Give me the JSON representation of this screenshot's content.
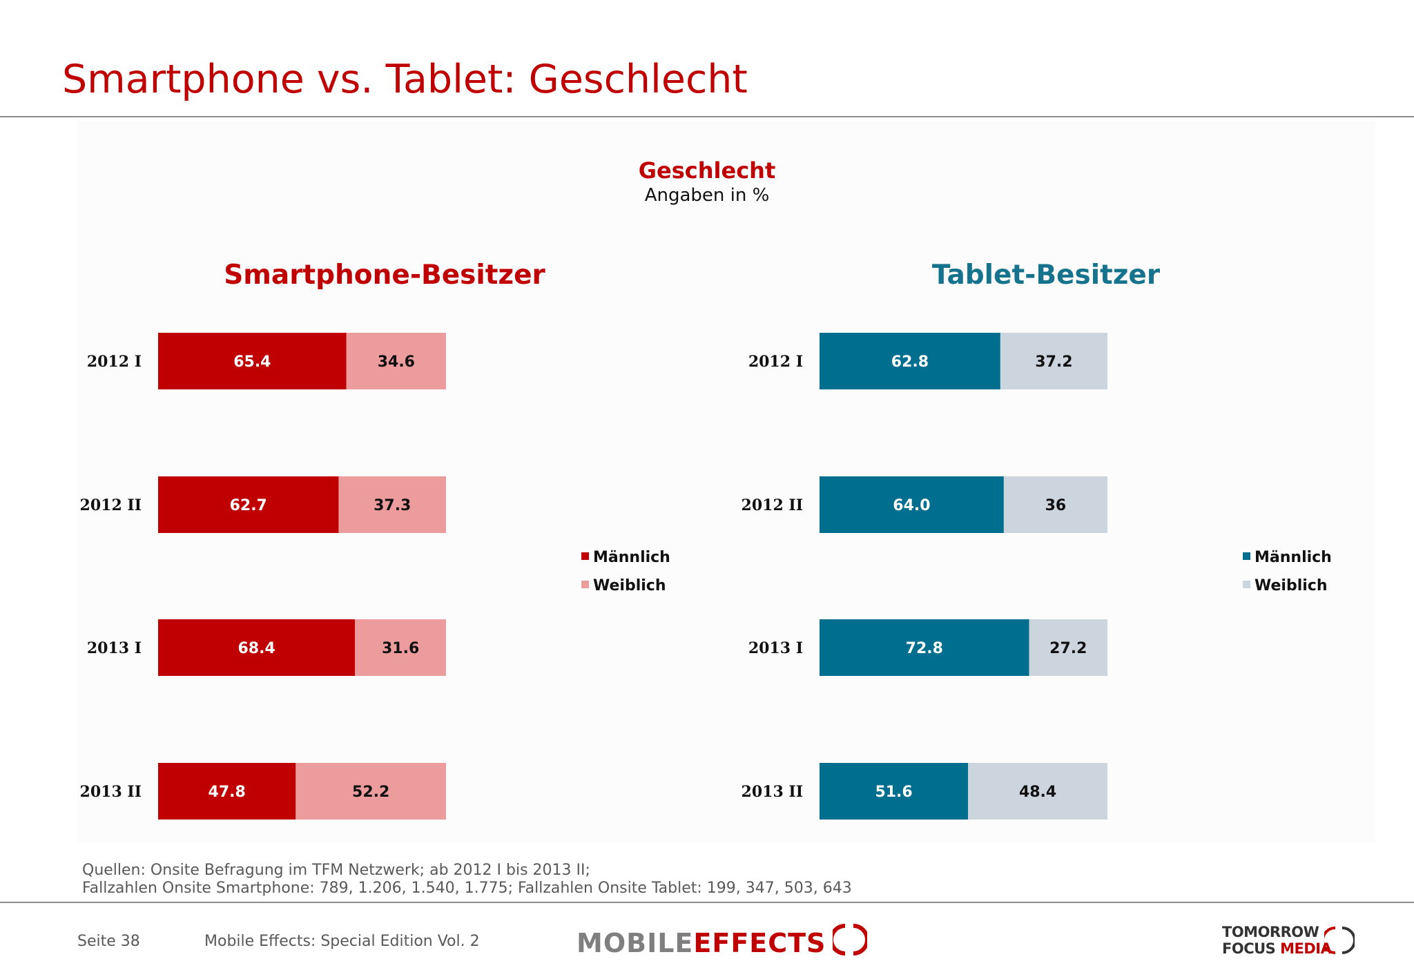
{
  "page": {
    "title": "Smartphone vs. Tablet: Geschlecht"
  },
  "chart_data": [
    {
      "type": "bar",
      "orientation": "horizontal",
      "stacked": true,
      "title": "Smartphone-Besitzer",
      "categories": [
        "2012 I",
        "2012 II",
        "2013 I",
        "2013 II"
      ],
      "series": [
        {
          "name": "Männlich",
          "values": [
            65.4,
            62.7,
            68.4,
            47.8
          ],
          "labels": [
            "65.4",
            "62.7",
            "68.4",
            "47.8"
          ],
          "color": "#c00000"
        },
        {
          "name": "Weiblich",
          "values": [
            34.6,
            37.3,
            31.6,
            52.2
          ],
          "labels": [
            "34.6",
            "37.3",
            "31.6",
            "52.2"
          ],
          "color": "#ec9c9c"
        }
      ],
      "xlim": [
        0,
        100
      ],
      "legend": "right"
    },
    {
      "type": "bar",
      "orientation": "horizontal",
      "stacked": true,
      "title": "Tablet-Besitzer",
      "categories": [
        "2012 I",
        "2012 II",
        "2013 I",
        "2013 II"
      ],
      "series": [
        {
          "name": "Männlich",
          "values": [
            62.8,
            64.0,
            72.8,
            51.6
          ],
          "labels": [
            "62.8",
            "64.0",
            "72.8",
            "51.6"
          ],
          "color": "#006f8f"
        },
        {
          "name": "Weiblich",
          "values": [
            37.2,
            36,
            27.2,
            48.4
          ],
          "labels": [
            "37.2",
            "36",
            "27.2",
            "48.4"
          ],
          "color": "#ccd5de"
        }
      ],
      "xlim": [
        0,
        100
      ],
      "legend": "right"
    }
  ],
  "chart_header": {
    "heading": "Geschlecht",
    "subheading": "Angaben in %"
  },
  "colors": {
    "title_red": "#c00000",
    "tablet_teal": "#15738e",
    "male_label_text": "#ffffff",
    "female_label_text": "#111111"
  },
  "source": {
    "line1": "Quellen: Onsite Befragung im TFM Netzwerk; ab 2012 I bis 2013 II;",
    "line2": "Fallzahlen Onsite Smartphone: 789, 1.206, 1.540, 1.775; Fallzahlen Onsite Tablet: 199, 347, 503, 643"
  },
  "footer": {
    "page_number": "Seite 38",
    "publication": "Mobile Effects: Special Edition Vol. 2",
    "logo_mobile_effects": {
      "part1": "MOBILE",
      "part2": "EFFECTS"
    },
    "logo_tfm": {
      "line1": "TOMORROW",
      "line2a": "FOCUS",
      "line2b": "MEDIA"
    }
  }
}
